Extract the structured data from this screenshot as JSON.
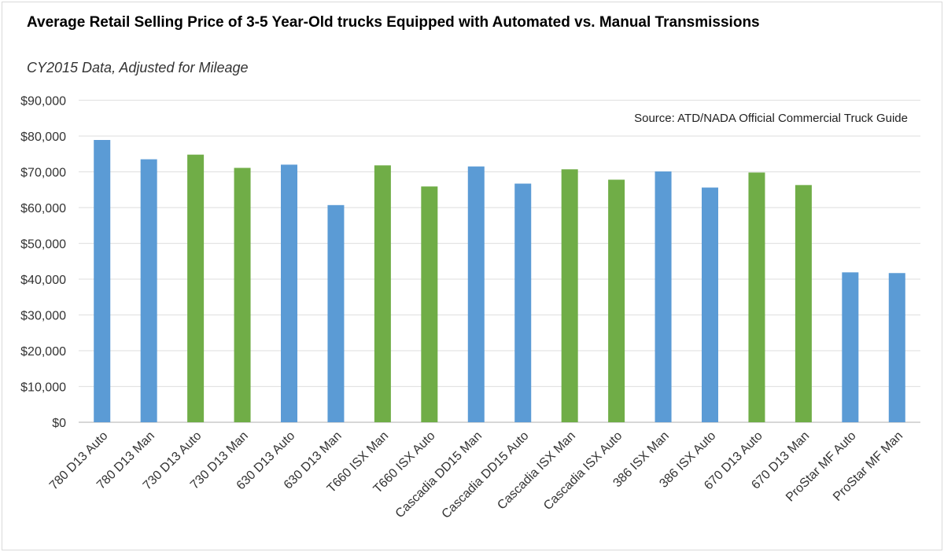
{
  "chart_data": {
    "type": "bar",
    "title": "Average Retail Selling Price of 3-5 Year-Old trucks Equipped with Automated vs. Manual Transmissions",
    "subtitle": "CY2015 Data, Adjusted for Mileage",
    "annotation": "Source: ATD/NADA Official Commercial Truck Guide",
    "xlabel": "",
    "ylabel": "",
    "ylim": [
      0,
      90000
    ],
    "yticks": [
      0,
      10000,
      20000,
      30000,
      40000,
      50000,
      60000,
      70000,
      80000,
      90000
    ],
    "ytick_labels": [
      "$0",
      "$10,000",
      "$20,000",
      "$30,000",
      "$40,000",
      "$50,000",
      "$60,000",
      "$70,000",
      "$80,000",
      "$90,000"
    ],
    "grid": true,
    "categories": [
      "780 D13 Auto",
      "780 D13 Man",
      "730 D13 Auto",
      "730 D13 Man",
      "630 D13 Auto",
      "630 D13 Man",
      "T660 ISX Man",
      "T660 ISX Auto",
      "Cascadia DD15 Man",
      "Cascadia DD15 Auto",
      "Cascadia ISX Man",
      "Cascadia ISX Auto",
      "386 ISX Man",
      "386 ISX Auto",
      "670 D13 Auto",
      "670 D13 Man",
      "ProStar MF Auto",
      "ProStar MF Man"
    ],
    "values": [
      78900,
      73500,
      74800,
      71100,
      72000,
      60700,
      71800,
      65900,
      71500,
      66700,
      70700,
      67800,
      70100,
      65600,
      69800,
      66300,
      41900,
      41700
    ],
    "bar_colors": [
      "#5B9BD5",
      "#5B9BD5",
      "#70AD47",
      "#70AD47",
      "#5B9BD5",
      "#5B9BD5",
      "#70AD47",
      "#70AD47",
      "#5B9BD5",
      "#5B9BD5",
      "#70AD47",
      "#70AD47",
      "#5B9BD5",
      "#5B9BD5",
      "#70AD47",
      "#70AD47",
      "#5B9BD5",
      "#5B9BD5"
    ]
  }
}
